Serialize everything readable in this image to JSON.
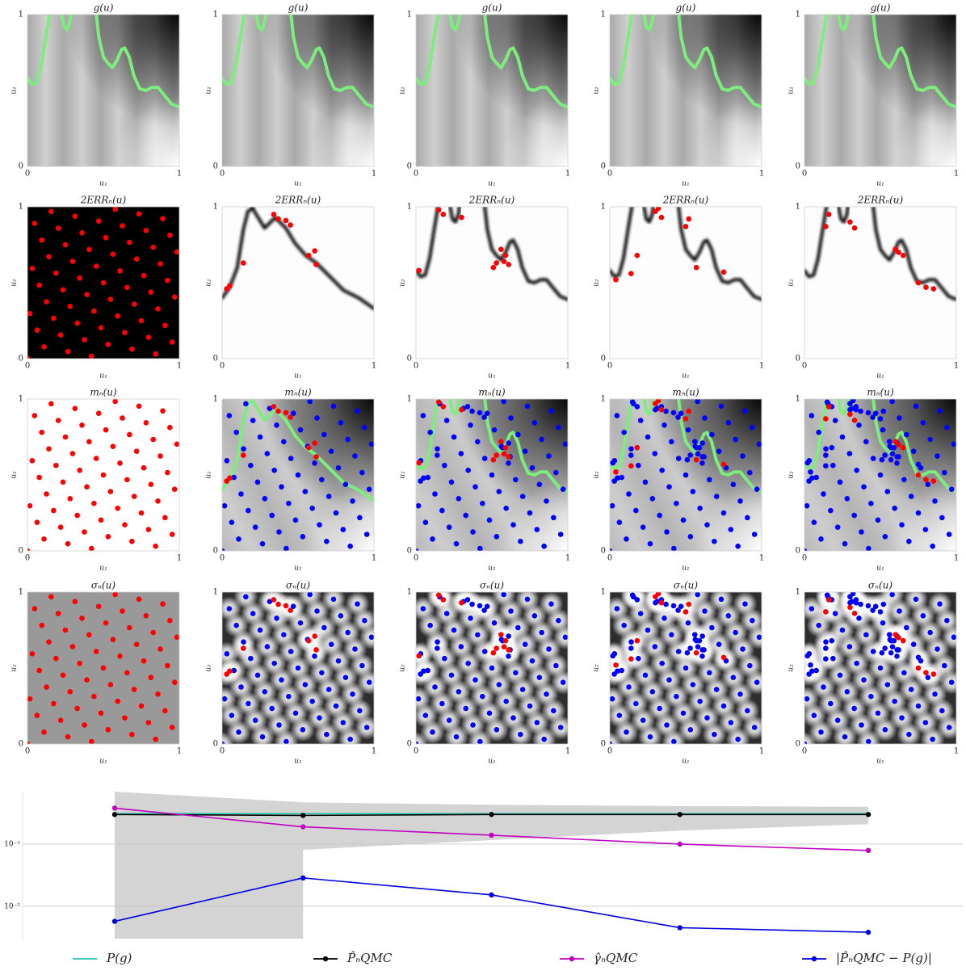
{
  "chart_data": [
    {
      "type": "heatmap",
      "title": "g(u)",
      "xlabel": "u₁",
      "ylabel": "u₂",
      "xlim": [
        0,
        1
      ],
      "ylim": [
        0,
        1
      ],
      "xticks": [
        0,
        1
      ],
      "yticks": [
        0,
        1
      ]
    },
    {
      "type": "heatmap",
      "title": "g(u)",
      "xlabel": "u₁",
      "ylabel": "u₂",
      "xlim": [
        0,
        1
      ],
      "ylim": [
        0,
        1
      ],
      "xticks": [
        0,
        1
      ],
      "yticks": [
        0,
        1
      ]
    },
    {
      "type": "heatmap",
      "title": "g(u)",
      "xlabel": "u₁",
      "ylabel": "u₂",
      "xlim": [
        0,
        1
      ],
      "ylim": [
        0,
        1
      ],
      "xticks": [
        0,
        1
      ],
      "yticks": [
        0,
        1
      ]
    },
    {
      "type": "heatmap",
      "title": "g(u)",
      "xlabel": "u₁",
      "ylabel": "u₂",
      "xlim": [
        0,
        1
      ],
      "ylim": [
        0,
        1
      ],
      "xticks": [
        0,
        1
      ],
      "yticks": [
        0,
        1
      ]
    },
    {
      "type": "heatmap",
      "title": "g(u)",
      "xlabel": "u₁",
      "ylabel": "u₂",
      "xlim": [
        0,
        1
      ],
      "ylim": [
        0,
        1
      ],
      "xticks": [
        0,
        1
      ],
      "yticks": [
        0,
        1
      ]
    },
    {
      "type": "heatmap",
      "title": "2ERRₙ(u)",
      "xlabel": "u₁",
      "ylabel": "u₂",
      "xlim": [
        0,
        1
      ],
      "ylim": [
        0,
        1
      ],
      "xticks": [
        0,
        1
      ],
      "yticks": [
        0,
        1
      ]
    },
    {
      "type": "heatmap",
      "title": "2ERRₙ(u)",
      "xlabel": "u₁",
      "ylabel": "u₂",
      "xlim": [
        0,
        1
      ],
      "ylim": [
        0,
        1
      ],
      "xticks": [
        0,
        1
      ],
      "yticks": [
        0,
        1
      ]
    },
    {
      "type": "heatmap",
      "title": "2ERRₙ(u)",
      "xlabel": "u₁",
      "ylabel": "u₂",
      "xlim": [
        0,
        1
      ],
      "ylim": [
        0,
        1
      ],
      "xticks": [
        0,
        1
      ],
      "yticks": [
        0,
        1
      ]
    },
    {
      "type": "heatmap",
      "title": "2ERRₙ(u)",
      "xlabel": "u₁",
      "ylabel": "u₂",
      "xlim": [
        0,
        1
      ],
      "ylim": [
        0,
        1
      ],
      "xticks": [
        0,
        1
      ],
      "yticks": [
        0,
        1
      ]
    },
    {
      "type": "heatmap",
      "title": "2ERRₙ(u)",
      "xlabel": "u₁",
      "ylabel": "u₂",
      "xlim": [
        0,
        1
      ],
      "ylim": [
        0,
        1
      ],
      "xticks": [
        0,
        1
      ],
      "yticks": [
        0,
        1
      ]
    },
    {
      "type": "heatmap",
      "title": "mₙ(u)",
      "xlabel": "u₁",
      "ylabel": "u₂",
      "xlim": [
        0,
        1
      ],
      "ylim": [
        0,
        1
      ],
      "xticks": [
        0,
        1
      ],
      "yticks": [
        0,
        1
      ]
    },
    {
      "type": "heatmap",
      "title": "mₙ(u)",
      "xlabel": "u₁",
      "ylabel": "u₂",
      "xlim": [
        0,
        1
      ],
      "ylim": [
        0,
        1
      ],
      "xticks": [
        0,
        1
      ],
      "yticks": [
        0,
        1
      ]
    },
    {
      "type": "heatmap",
      "title": "mₙ(u)",
      "xlabel": "u₁",
      "ylabel": "u₂",
      "xlim": [
        0,
        1
      ],
      "ylim": [
        0,
        1
      ],
      "xticks": [
        0,
        1
      ],
      "yticks": [
        0,
        1
      ]
    },
    {
      "type": "heatmap",
      "title": "mₙ(u)",
      "xlabel": "u₁",
      "ylabel": "u₂",
      "xlim": [
        0,
        1
      ],
      "ylim": [
        0,
        1
      ],
      "xticks": [
        0,
        1
      ],
      "yticks": [
        0,
        1
      ]
    },
    {
      "type": "heatmap",
      "title": "mₙ(u)",
      "xlabel": "u₁",
      "ylabel": "u₂",
      "xlim": [
        0,
        1
      ],
      "ylim": [
        0,
        1
      ],
      "xticks": [
        0,
        1
      ],
      "yticks": [
        0,
        1
      ]
    },
    {
      "type": "heatmap",
      "title": "σₙ(u)",
      "xlabel": "u₁",
      "ylabel": "u₂",
      "xlim": [
        0,
        1
      ],
      "ylim": [
        0,
        1
      ],
      "xticks": [
        0,
        1
      ],
      "yticks": [
        0,
        1
      ]
    },
    {
      "type": "heatmap",
      "title": "σₙ(u)",
      "xlabel": "u₁",
      "ylabel": "u₂",
      "xlim": [
        0,
        1
      ],
      "ylim": [
        0,
        1
      ],
      "xticks": [
        0,
        1
      ],
      "yticks": [
        0,
        1
      ]
    },
    {
      "type": "heatmap",
      "title": "σₙ(u)",
      "xlabel": "u₁",
      "ylabel": "u₂",
      "xlim": [
        0,
        1
      ],
      "ylim": [
        0,
        1
      ],
      "xticks": [
        0,
        1
      ],
      "yticks": [
        0,
        1
      ]
    },
    {
      "type": "heatmap",
      "title": "σₙ(u)",
      "xlabel": "u₁",
      "ylabel": "u₂",
      "xlim": [
        0,
        1
      ],
      "ylim": [
        0,
        1
      ],
      "xticks": [
        0,
        1
      ],
      "yticks": [
        0,
        1
      ]
    },
    {
      "type": "heatmap",
      "title": "σₙ(u)",
      "xlabel": "u₁",
      "ylabel": "u₂",
      "xlim": [
        0,
        1
      ],
      "ylim": [
        0,
        1
      ],
      "xticks": [
        0,
        1
      ],
      "yticks": [
        0,
        1
      ]
    },
    {
      "type": "line",
      "categories": [
        null,
        null,
        null,
        null,
        null
      ],
      "log_y": true,
      "grid": true,
      "legend": "bottom",
      "ylim": [
        0.003,
        0.7
      ],
      "yticks": [
        {
          "value": 0.1,
          "label": "10⁻¹"
        },
        {
          "value": 0.01,
          "label": "10⁻²"
        }
      ],
      "band": {
        "color": "#d4d4d4",
        "upper": [
          0.7,
          0.47,
          0.43,
          0.41,
          0.4
        ],
        "lower": [
          null,
          0.081,
          0.116,
          0.165,
          0.21
        ]
      },
      "series": [
        {
          "name": "P(g)",
          "color": "#2ec4b0",
          "marker": false,
          "values": [
            0.31,
            0.31,
            0.31,
            0.31,
            0.31
          ]
        },
        {
          "name": "P̂ₙQMC",
          "color": "#000000",
          "marker": true,
          "values": [
            0.3,
            0.29,
            0.3,
            0.3,
            0.3
          ]
        },
        {
          "name": "γ̂ₙQMC",
          "color": "#c000c0",
          "marker": true,
          "values": [
            0.38,
            0.19,
            0.139,
            0.1,
            0.079
          ]
        },
        {
          "name": "|P̂ₙQMC − P(g)|",
          "color": "#0000e0",
          "marker": true,
          "values": [
            0.0057,
            0.0285,
            0.0152,
            0.0045,
            0.0038
          ]
        }
      ]
    }
  ],
  "new_color": "#ff0000",
  "old_color": "#0000ff",
  "designs": [
    {
      "x": [
        0,
        0.016,
        0.031,
        0.047,
        0.063,
        0.078,
        0.094,
        0.109,
        0.125,
        0.141,
        0.156,
        0.172,
        0.188,
        0.203,
        0.219,
        0.234,
        0.25,
        0.266,
        0.281,
        0.297,
        0.313,
        0.328,
        0.344,
        0.359,
        0.375,
        0.391,
        0.406,
        0.422,
        0.438,
        0.453,
        0.469,
        0.484,
        0.5,
        0.516,
        0.531,
        0.547,
        0.563,
        0.578,
        0.594,
        0.609,
        0.625,
        0.641,
        0.656,
        0.672,
        0.688,
        0.703,
        0.719,
        0.734,
        0.75,
        0.766,
        0.781,
        0.797,
        0.813,
        0.828,
        0.844,
        0.859,
        0.875,
        0.891,
        0.906,
        0.922,
        0.938,
        0.953,
        0.969,
        0.984
      ],
      "y": [
        0,
        0.297,
        0.594,
        0.891,
        0.188,
        0.484,
        0.781,
        0.078,
        0.375,
        0.672,
        0.969,
        0.266,
        0.563,
        0.859,
        0.156,
        0.453,
        0.75,
        0.047,
        0.344,
        0.641,
        0.938,
        0.234,
        0.531,
        0.828,
        0.125,
        0.422,
        0.719,
        0.016,
        0.313,
        0.609,
        0.906,
        0.203,
        0.5,
        0.797,
        0.094,
        0.391,
        0.688,
        0.984,
        0.281,
        0.578,
        0.875,
        0.172,
        0.469,
        0.766,
        0.063,
        0.359,
        0.656,
        0.953,
        0.25,
        0.547,
        0.844,
        0.141,
        0.438,
        0.734,
        0.031,
        0.328,
        0.625,
        0.922,
        0.219,
        0.516,
        0.813,
        0.109,
        0.406,
        0.703
      ]
    },
    {
      "x": [
        0.03,
        0.05,
        0.14,
        0.34,
        0.37,
        0.42,
        0.45,
        0.57,
        0.61,
        0.62
      ],
      "y": [
        0.46,
        0.48,
        0.63,
        0.95,
        0.92,
        0.91,
        0.88,
        0.68,
        0.71,
        0.62
      ]
    },
    {
      "x": [
        0.02,
        0.15,
        0.18,
        0.3,
        0.51,
        0.53,
        0.56,
        0.58,
        0.59,
        0.61
      ],
      "y": [
        0.58,
        0.98,
        0.95,
        0.93,
        0.6,
        0.63,
        0.72,
        0.64,
        0.68,
        0.62
      ]
    },
    {
      "x": [
        0.04,
        0.14,
        0.18,
        0.3,
        0.32,
        0.34,
        0.5,
        0.52,
        0.57,
        0.75
      ],
      "y": [
        0.52,
        0.56,
        0.68,
        0.97,
        0.99,
        0.93,
        0.87,
        0.92,
        0.6,
        0.57
      ]
    },
    {
      "x": [
        0.14,
        0.16,
        0.3,
        0.33,
        0.6,
        0.62,
        0.65,
        0.75,
        0.8,
        0.85
      ],
      "y": [
        0.87,
        0.95,
        0.9,
        0.86,
        0.72,
        0.7,
        0.68,
        0.5,
        0.47,
        0.46
      ]
    }
  ]
}
